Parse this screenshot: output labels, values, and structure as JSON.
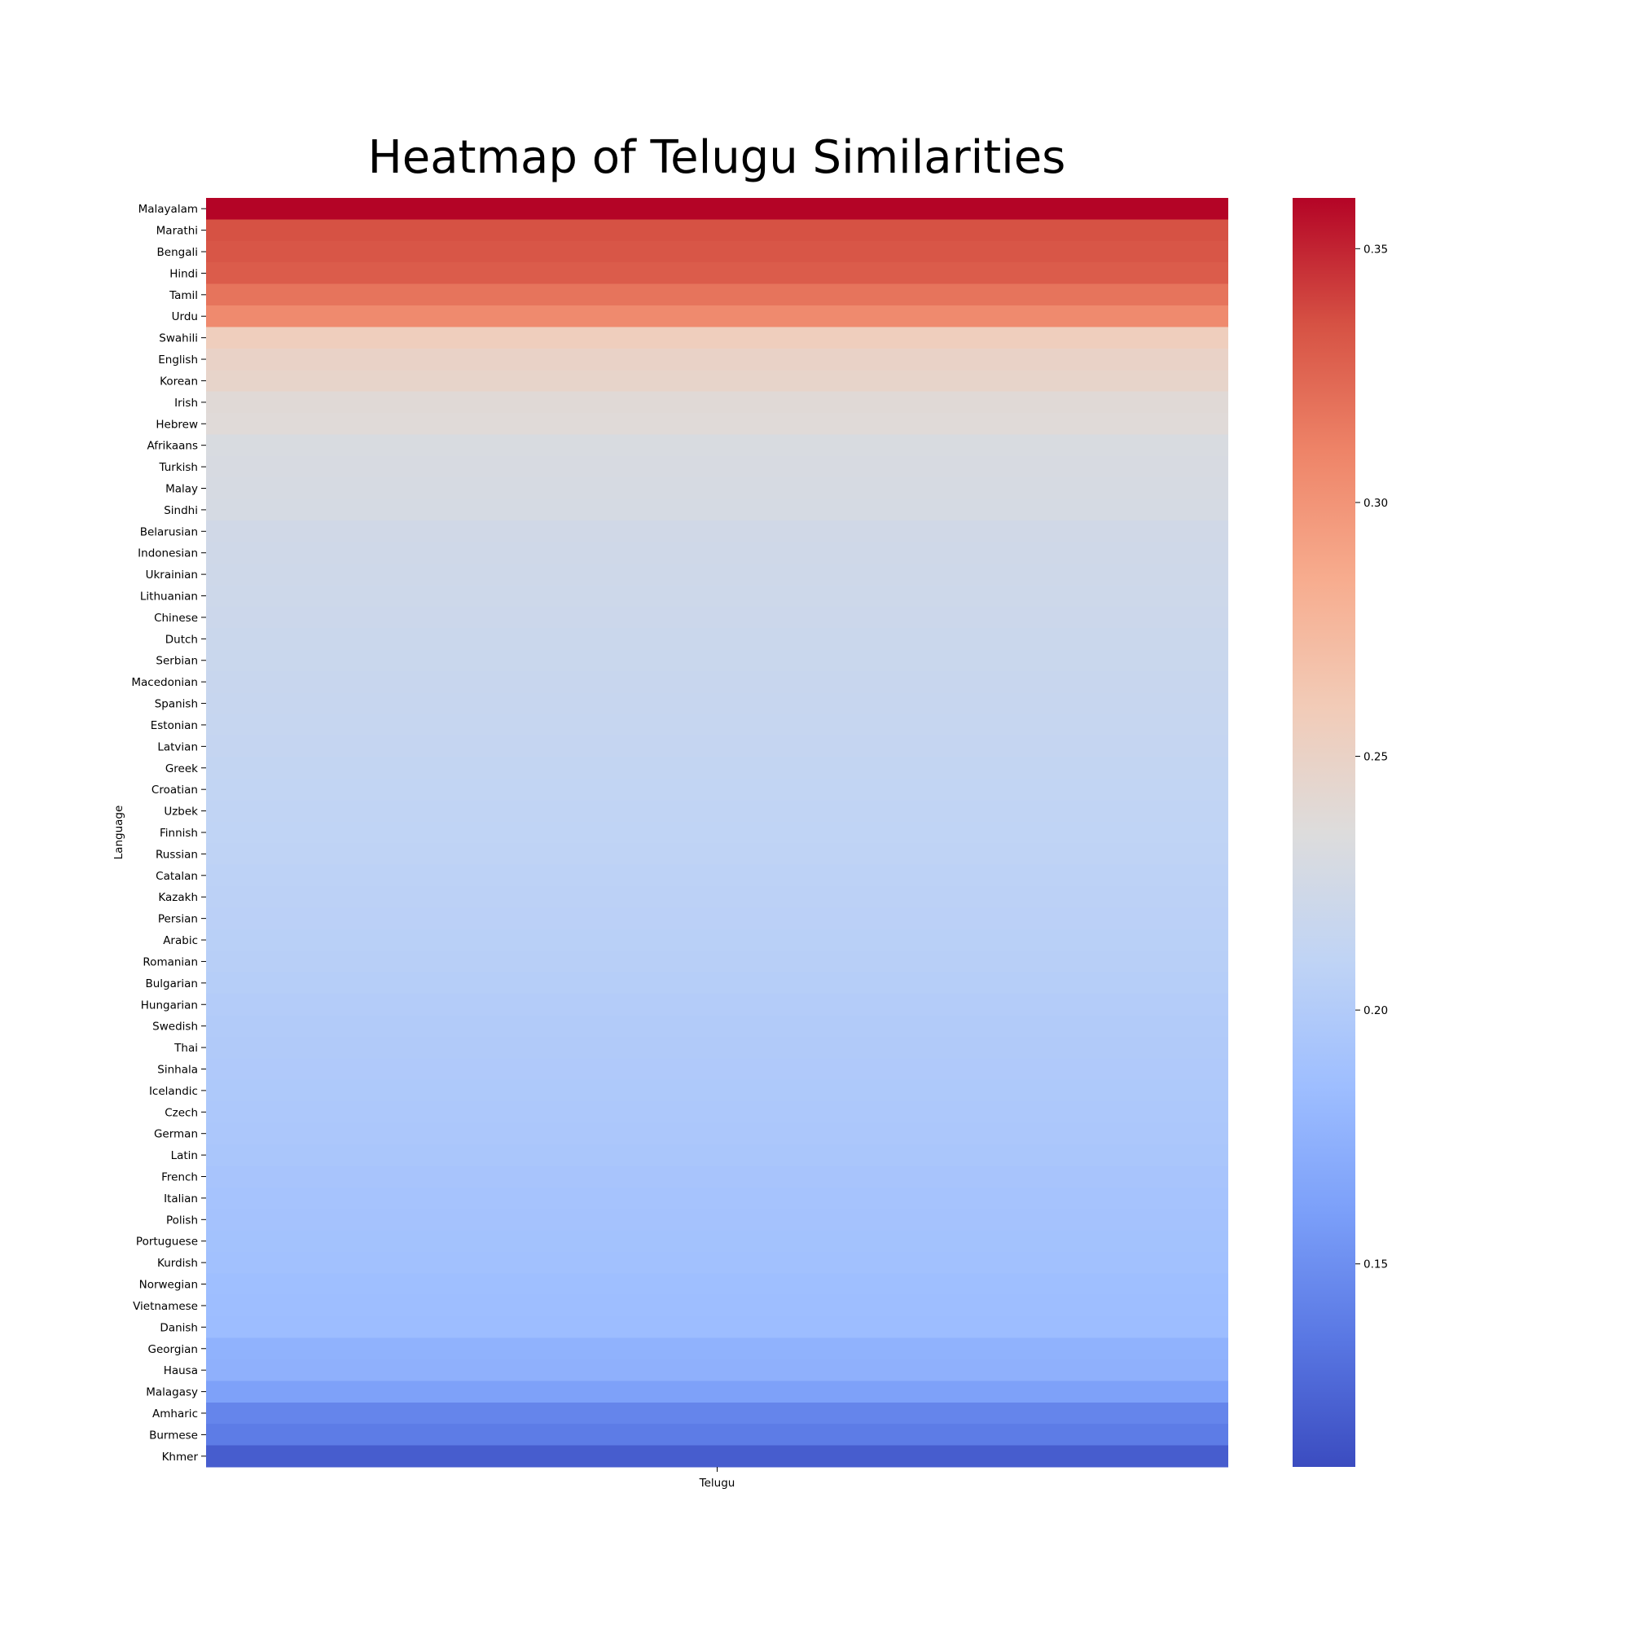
{
  "chart_data": {
    "type": "heatmap",
    "title": "Heatmap of Telugu Similarities",
    "xlabel": "",
    "ylabel": "Language",
    "columns": [
      "Telugu"
    ],
    "rows": [
      "Malayalam",
      "Marathi",
      "Bengali",
      "Hindi",
      "Tamil",
      "Urdu",
      "Swahili",
      "English",
      "Korean",
      "Irish",
      "Hebrew",
      "Afrikaans",
      "Turkish",
      "Malay",
      "Sindhi",
      "Belarusian",
      "Indonesian",
      "Ukrainian",
      "Lithuanian",
      "Chinese",
      "Dutch",
      "Serbian",
      "Macedonian",
      "Spanish",
      "Estonian",
      "Latvian",
      "Greek",
      "Croatian",
      "Uzbek",
      "Finnish",
      "Russian",
      "Catalan",
      "Kazakh",
      "Persian",
      "Arabic",
      "Romanian",
      "Bulgarian",
      "Hungarian",
      "Swedish",
      "Thai",
      "Sinhala",
      "Icelandic",
      "Czech",
      "German",
      "Latin",
      "French",
      "Italian",
      "Polish",
      "Portuguese",
      "Kurdish",
      "Norwegian",
      "Vietnamese",
      "Danish",
      "Georgian",
      "Hausa",
      "Malagasy",
      "Amharic",
      "Burmese",
      "Khmer"
    ],
    "values": [
      0.36,
      0.335,
      0.333,
      0.33,
      0.318,
      0.306,
      0.256,
      0.249,
      0.247,
      0.239,
      0.238,
      0.231,
      0.23,
      0.229,
      0.228,
      0.224,
      0.223,
      0.222,
      0.221,
      0.22,
      0.219,
      0.218,
      0.217,
      0.216,
      0.215,
      0.214,
      0.213,
      0.212,
      0.211,
      0.21,
      0.209,
      0.208,
      0.207,
      0.206,
      0.205,
      0.204,
      0.203,
      0.201,
      0.2,
      0.199,
      0.198,
      0.197,
      0.196,
      0.195,
      0.194,
      0.192,
      0.191,
      0.19,
      0.189,
      0.188,
      0.186,
      0.185,
      0.184,
      0.175,
      0.174,
      0.162,
      0.144,
      0.138,
      0.12
    ],
    "colorbar": {
      "min": 0.11,
      "max": 0.36,
      "ticks": [
        0.15,
        0.2,
        0.25,
        0.3,
        0.35
      ],
      "tick_labels": [
        "0.15",
        "0.20",
        "0.25",
        "0.30",
        "0.35"
      ]
    },
    "colormap": "coolwarm",
    "colormap_stops": [
      "#3b4cc0",
      "#5977e3",
      "#7b9ff9",
      "#9ebeff",
      "#c0d4f5",
      "#dddcdc",
      "#f2cbb7",
      "#f7ac8e",
      "#ee8468",
      "#d65244",
      "#b40426"
    ],
    "grid": false
  }
}
